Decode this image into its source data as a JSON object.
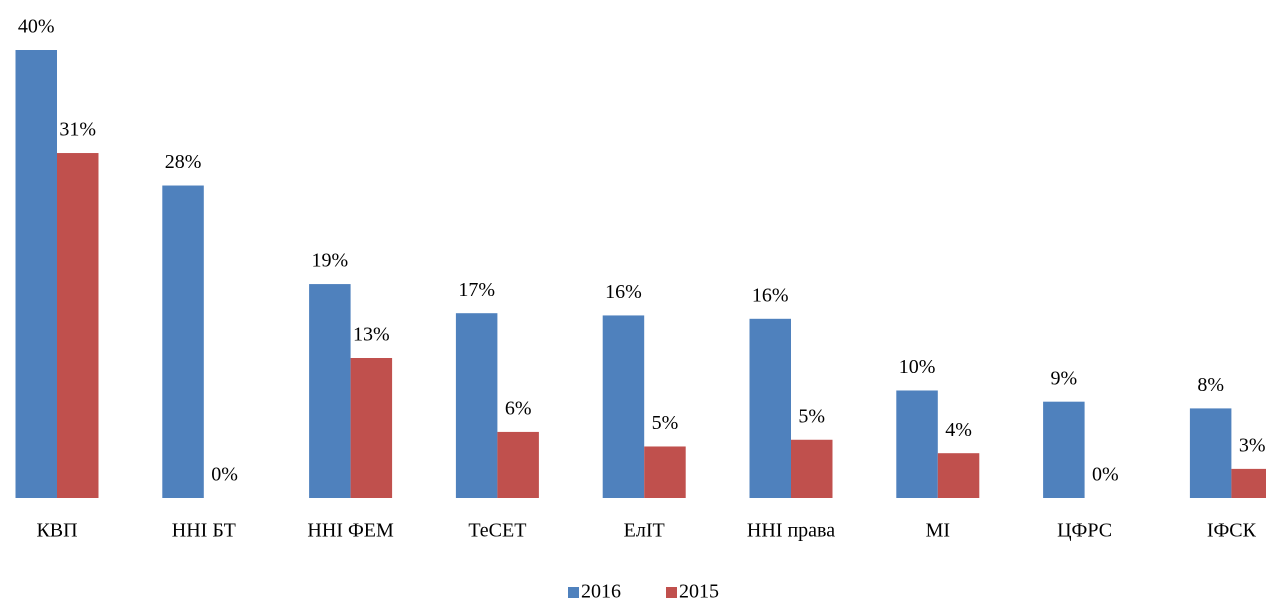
{
  "chart_data": {
    "type": "bar",
    "categories": [
      "КВП",
      "ННІ БТ",
      "ННІ ФЕМ",
      "ТеСЕТ",
      "ЕлІТ",
      "ННІ права",
      "МІ",
      "ЦФРС",
      "ІФСК"
    ],
    "series": [
      {
        "name": "2016",
        "color": "#4f81bd",
        "values": [
          40,
          27.9,
          19.1,
          16.5,
          16.3,
          16,
          9.6,
          8.6,
          8
        ],
        "value_labels": [
          "40%",
          "28%",
          "19%",
          "17%",
          "16%",
          "16%",
          "10%",
          "9%",
          "8%"
        ]
      },
      {
        "name": "2015",
        "color": "#c0504d",
        "values": [
          30.8,
          0,
          12.5,
          5.9,
          4.6,
          5.2,
          4,
          0,
          2.6
        ],
        "value_labels": [
          "31%",
          "0%",
          "13%",
          "6%",
          "5%",
          "5%",
          "4%",
          "0%",
          "3%"
        ]
      }
    ],
    "legend": "bottom"
  }
}
